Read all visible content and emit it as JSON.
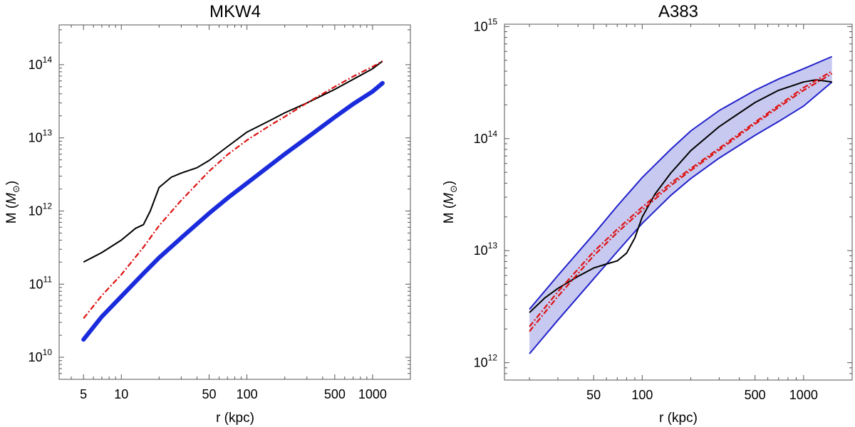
{
  "chart_data": [
    {
      "type": "line",
      "title": "MKW4",
      "xlabel": "r (kpc)",
      "ylabel_main": "M (",
      "ylabel_sym": "M",
      "ylabel_sub": "⊙",
      "ylabel_close": ")",
      "xscale": "log",
      "yscale": "log",
      "xlim": [
        3.2,
        2000
      ],
      "ylim": [
        5000000000.0,
        350000000000000.0
      ],
      "xticks_major": [
        {
          "value": 5,
          "label": "5"
        },
        {
          "value": 10,
          "label": "10"
        },
        {
          "value": 50,
          "label": "50"
        },
        {
          "value": 100,
          "label": "100"
        },
        {
          "value": 500,
          "label": "500"
        },
        {
          "value": 1000,
          "label": "1000"
        }
      ],
      "yticks_major": [
        {
          "value": 10000000000.0,
          "base": "10",
          "exp": "10"
        },
        {
          "value": 100000000000.0,
          "base": "10",
          "exp": "11"
        },
        {
          "value": 1000000000000.0,
          "base": "10",
          "exp": "12"
        },
        {
          "value": 10000000000000.0,
          "base": "10",
          "exp": "13"
        },
        {
          "value": 100000000000000.0,
          "base": "10",
          "exp": "14"
        }
      ],
      "series": [
        {
          "style": "solid-black",
          "x": [
            5,
            7,
            10,
            13,
            15,
            17,
            20,
            25,
            30,
            40,
            50,
            70,
            100,
            150,
            200,
            300,
            500,
            700,
            1000,
            1200
          ],
          "y": [
            200000000000.0,
            270000000000.0,
            400000000000.0,
            580000000000.0,
            650000000000.0,
            1000000000000.0,
            2100000000000.0,
            2900000000000.0,
            3300000000000.0,
            3900000000000.0,
            4900000000000.0,
            7600000000000.0,
            12000000000000.0,
            17000000000000.0,
            22000000000000.0,
            30000000000000.0,
            46000000000000.0,
            63000000000000.0,
            88000000000000.0,
            112000000000000.0
          ]
        },
        {
          "style": "dashdot-red",
          "x": [
            5,
            7,
            10,
            15,
            20,
            30,
            50,
            70,
            100,
            150,
            200,
            300,
            500,
            700,
            1000,
            1200
          ],
          "y": [
            34000000000.0,
            70000000000.0,
            135000000000.0,
            320000000000.0,
            630000000000.0,
            1400000000000.0,
            3500000000000.0,
            5900000000000.0,
            9300000000000.0,
            14500000000000.0,
            19500000000000.0,
            30000000000000.0,
            50000000000000.0,
            69000000000000.0,
            94000000000000.0,
            112000000000000.0
          ]
        },
        {
          "style": "band-blue",
          "x": [
            5,
            7,
            10,
            15,
            20,
            30,
            50,
            70,
            100,
            150,
            200,
            300,
            500,
            700,
            1000,
            1200
          ],
          "y": [
            17500000000.0,
            36000000000.0,
            68000000000.0,
            140000000000.0,
            230000000000.0,
            430000000000.0,
            930000000000.0,
            1500000000000.0,
            2400000000000.0,
            4100000000000.0,
            6000000000000.0,
            10000000000000.0,
            19200000000000.0,
            29000000000000.0,
            43000000000000.0,
            56000000000000.0
          ]
        }
      ]
    },
    {
      "type": "line",
      "title": "A383",
      "xlabel": "r (kpc)",
      "ylabel_main": "M (",
      "ylabel_sym": "M",
      "ylabel_sub": "⊙",
      "ylabel_close": ")",
      "xscale": "log",
      "yscale": "log",
      "xlim": [
        14,
        2000
      ],
      "ylim": [
        700000000000.0,
        1050000000000000.0
      ],
      "xticks_major": [
        {
          "value": 50,
          "label": "50"
        },
        {
          "value": 100,
          "label": "100"
        },
        {
          "value": 500,
          "label": "500"
        },
        {
          "value": 1000,
          "label": "1000"
        }
      ],
      "yticks_major": [
        {
          "value": 1000000000000.0,
          "base": "10",
          "exp": "12"
        },
        {
          "value": 10000000000000.0,
          "base": "10",
          "exp": "13"
        },
        {
          "value": 100000000000000.0,
          "base": "10",
          "exp": "14"
        },
        {
          "value": 1000000000000000.0,
          "base": "10",
          "exp": "15"
        }
      ],
      "series": [
        {
          "style": "band-upper",
          "x": [
            20,
            30,
            50,
            70,
            100,
            150,
            200,
            300,
            500,
            700,
            1000,
            1500
          ],
          "y": [
            3000000000000.0,
            6000000000000.0,
            14000000000000.0,
            25000000000000.0,
            45000000000000.0,
            80000000000000.0,
            117000000000000.0,
            178000000000000.0,
            270000000000000.0,
            340000000000000.0,
            420000000000000.0,
            540000000000000.0
          ]
        },
        {
          "style": "band-lower",
          "x": [
            20,
            30,
            50,
            70,
            100,
            150,
            200,
            300,
            500,
            700,
            1000,
            1500
          ],
          "y": [
            1200000000000.0,
            2400000000000.0,
            5600000000000.0,
            9800000000000.0,
            17500000000000.0,
            31000000000000.0,
            44000000000000.0,
            67000000000000.0,
            107000000000000.0,
            142000000000000.0,
            195000000000000.0,
            320000000000000.0
          ]
        },
        {
          "style": "solid-black",
          "x": [
            20,
            25,
            30,
            40,
            50,
            60,
            70,
            80,
            90,
            100,
            120,
            150,
            200,
            300,
            500,
            700,
            1000,
            1200,
            1500
          ],
          "y": [
            2800000000000.0,
            3800000000000.0,
            4600000000000.0,
            5900000000000.0,
            7000000000000.0,
            7600000000000.0,
            8100000000000.0,
            9500000000000.0,
            13000000000000.0,
            20000000000000.0,
            32000000000000.0,
            49000000000000.0,
            78000000000000.0,
            128000000000000.0,
            210000000000000.0,
            270000000000000.0,
            320000000000000.0,
            335000000000000.0,
            320000000000000.0
          ]
        },
        {
          "style": "dashdot-red",
          "x": [
            20,
            30,
            50,
            70,
            100,
            150,
            200,
            300,
            500,
            700,
            1000,
            1500
          ],
          "y": [
            1900000000000.0,
            3900000000000.0,
            9000000000000.0,
            14500000000000.0,
            23000000000000.0,
            38000000000000.0,
            52000000000000.0,
            79000000000000.0,
            135000000000000.0,
            190000000000000.0,
            270000000000000.0,
            380000000000000.0
          ]
        },
        {
          "style": "dashdot-red-secondary",
          "x": [
            20,
            30,
            50,
            70,
            100,
            150,
            200,
            300,
            500,
            700,
            1000,
            1500
          ],
          "y": [
            2100000000000.0,
            4300000000000.0,
            9800000000000.0,
            15500000000000.0,
            24500000000000.0,
            40000000000000.0,
            54000000000000.0,
            82000000000000.0,
            140000000000000.0,
            198000000000000.0,
            285000000000000.0,
            400000000000000.0
          ]
        }
      ]
    }
  ]
}
